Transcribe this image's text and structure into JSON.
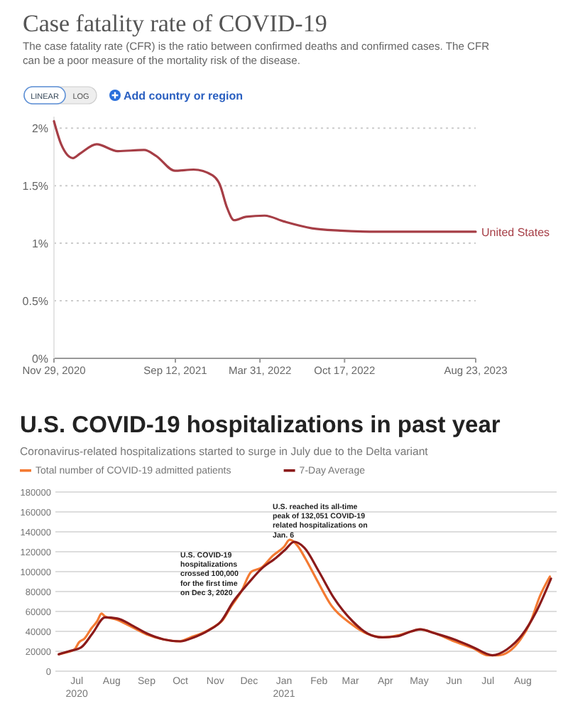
{
  "chart_data": [
    {
      "type": "line",
      "title": "Case fatality rate of COVID-19",
      "subtitle": "The case fatality rate (CFR) is the ratio between confirmed deaths and confirmed cases. The CFR can be a poor measure of the mortality risk of the disease.",
      "annotations": [
        "LINEAR",
        "LOG",
        "Add country or region"
      ],
      "x": [
        "2020-11-29",
        "2020-12-16",
        "2021-01-13",
        "2021-01-30",
        "2021-03-10",
        "2021-04-29",
        "2021-06-30",
        "2021-07-28",
        "2021-09-11",
        "2021-10-25",
        "2021-12-09",
        "2021-12-26",
        "2022-01-12",
        "2022-01-29",
        "2022-02-26",
        "2022-04-11",
        "2022-05-26",
        "2022-08-01",
        "2022-10-07",
        "2023-01-05",
        "2023-04-27",
        "2023-08-23"
      ],
      "series": [
        {
          "name": "United States",
          "color": "#a63e46",
          "values": [
            2.06,
            1.86,
            1.74,
            1.78,
            1.86,
            1.8,
            1.81,
            1.76,
            1.63,
            1.64,
            1.59,
            1.51,
            1.31,
            1.2,
            1.23,
            1.24,
            1.19,
            1.13,
            1.11,
            1.1,
            1.1,
            1.1
          ]
        }
      ],
      "xlim": [
        "2020-11-29",
        "2023-08-23"
      ],
      "xticks": [
        {
          "value": "2020-11-29",
          "label": "Nov 29, 2020"
        },
        {
          "value": "2021-09-12",
          "label": "Sep 12, 2021"
        },
        {
          "value": "2022-03-31",
          "label": "Mar 31, 2022"
        },
        {
          "value": "2022-10-17",
          "label": "Oct 17, 2022"
        },
        {
          "value": "2023-08-23",
          "label": "Aug 23, 2023"
        }
      ],
      "ylim": [
        0,
        2.1
      ],
      "yticks": [
        {
          "value": 0,
          "label": "0%"
        },
        {
          "value": 0.5,
          "label": "0.5%"
        },
        {
          "value": 1,
          "label": "1%"
        },
        {
          "value": 1.5,
          "label": "1.5%"
        },
        {
          "value": 2,
          "label": "2%"
        }
      ],
      "grid": "y"
    },
    {
      "type": "line",
      "title": "U.S. COVID-19 hospitalizations in past year",
      "subtitle": "Coronavirus-related hospitalizations started to surge in July due to the Delta variant",
      "annotations": [
        "U.S. COVID-19 hospitalizations crossed 100,000 for the first time on Dec 3, 2020",
        "U.S. reached its all-time peak of 132,051 COVID-19 related hospitalizations on Jan. 6"
      ],
      "series": [
        {
          "name": "Total number of COVID-19 admitted patients",
          "color": "#f47a32",
          "x": [
            "2020-06-15",
            "2020-06-22",
            "2020-06-29",
            "2020-07-03",
            "2020-07-08",
            "2020-07-14",
            "2020-07-19",
            "2020-07-23",
            "2020-07-26",
            "2020-08-05",
            "2020-08-18",
            "2020-09-01",
            "2020-09-16",
            "2020-09-30",
            "2020-10-10",
            "2020-10-20",
            "2020-10-30",
            "2020-11-08",
            "2020-11-15",
            "2020-11-24",
            "2020-12-03",
            "2020-12-12",
            "2020-12-22",
            "2021-01-01",
            "2021-01-06",
            "2021-01-13",
            "2021-01-20",
            "2021-01-30",
            "2021-02-12",
            "2021-03-01",
            "2021-03-15",
            "2021-03-30",
            "2021-04-12",
            "2021-04-24",
            "2021-05-01",
            "2021-05-15",
            "2021-06-01",
            "2021-06-18",
            "2021-07-01",
            "2021-07-10",
            "2021-07-20",
            "2021-07-30",
            "2021-08-08",
            "2021-08-16",
            "2021-08-25"
          ],
          "values": [
            17000,
            19000,
            22000,
            29000,
            33000,
            43000,
            50000,
            58000,
            55000,
            52000,
            45000,
            37000,
            32000,
            30000,
            34000,
            38000,
            44000,
            52000,
            65000,
            80000,
            100000,
            104000,
            116000,
            125000,
            132000,
            126000,
            113000,
            92000,
            66000,
            48000,
            38000,
            34000,
            36000,
            40000,
            42000,
            38000,
            30000,
            23000,
            16000,
            16000,
            20000,
            32000,
            50000,
            75000,
            95000
          ]
        },
        {
          "name": "7-Day Average",
          "color": "#8b1a1a",
          "x": [
            "2020-06-15",
            "2020-06-24",
            "2020-07-05",
            "2020-07-15",
            "2020-07-26",
            "2020-08-06",
            "2020-08-19",
            "2020-09-01",
            "2020-09-16",
            "2020-10-01",
            "2020-10-13",
            "2020-10-26",
            "2020-11-06",
            "2020-11-17",
            "2020-11-30",
            "2020-12-12",
            "2020-12-25",
            "2021-01-02",
            "2021-01-10",
            "2021-01-19",
            "2021-02-01",
            "2021-02-14",
            "2021-03-03",
            "2021-03-16",
            "2021-03-29",
            "2021-04-11",
            "2021-04-24",
            "2021-05-02",
            "2021-05-15",
            "2021-06-01",
            "2021-06-18",
            "2021-07-05",
            "2021-07-18",
            "2021-07-31",
            "2021-08-13",
            "2021-08-26"
          ],
          "values": [
            17000,
            20000,
            24000,
            38000,
            54000,
            53000,
            46000,
            38000,
            32000,
            30000,
            34000,
            41000,
            50000,
            70000,
            88000,
            103000,
            114000,
            122000,
            130000,
            124000,
            100000,
            74000,
            50000,
            38000,
            34000,
            35000,
            40000,
            42000,
            38000,
            32000,
            24000,
            16000,
            22000,
            36000,
            60000,
            93000
          ]
        }
      ],
      "xlim": [
        "2020-06-12",
        "2021-08-31"
      ],
      "xticks": [
        {
          "value": "2020-07-01",
          "label": "Jul\n2020"
        },
        {
          "value": "2020-08-01",
          "label": "Aug"
        },
        {
          "value": "2020-09-01",
          "label": "Sep"
        },
        {
          "value": "2020-10-01",
          "label": "Oct"
        },
        {
          "value": "2020-11-01",
          "label": "Nov"
        },
        {
          "value": "2020-12-01",
          "label": "Dec"
        },
        {
          "value": "2021-01-01",
          "label": "Jan\n2021"
        },
        {
          "value": "2021-02-01",
          "label": "Feb"
        },
        {
          "value": "2021-03-01",
          "label": "Mar"
        },
        {
          "value": "2021-04-01",
          "label": "Apr"
        },
        {
          "value": "2021-05-01",
          "label": "May"
        },
        {
          "value": "2021-06-01",
          "label": "Jun"
        },
        {
          "value": "2021-07-01",
          "label": "Jul"
        },
        {
          "value": "2021-08-01",
          "label": "Aug"
        }
      ],
      "ylim": [
        0,
        180000
      ],
      "yticks": [
        0,
        20000,
        40000,
        60000,
        80000,
        100000,
        120000,
        140000,
        160000,
        180000
      ],
      "grid": "y",
      "legend": "top"
    }
  ]
}
